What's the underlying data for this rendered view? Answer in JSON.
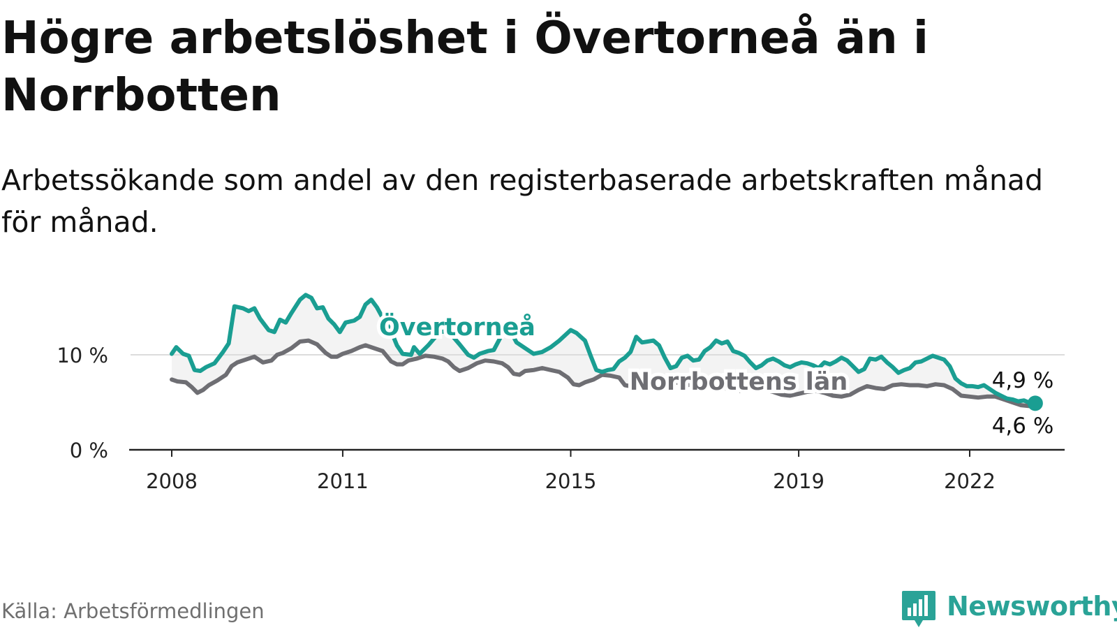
{
  "title": "Högre arbetslöshet i Övertorneå än i Norrbotten",
  "subtitle": "Arbetssökande som andel av den registerbaserade arbetskraften månad för månad.",
  "source": "Källa: Arbetsförmedlingen",
  "brand": {
    "name": "Newsworthy",
    "icon": "newsworthy-bar-chart-icon"
  },
  "colors": {
    "overtornea": "#1a9e92",
    "norrbotten": "#6e6e73",
    "gridline": "#dcdcdc",
    "axis": "#222222",
    "band": "#efefef"
  },
  "chart_data": {
    "type": "line",
    "title": "Högre arbetslöshet i Övertorneå än i Norrbotten",
    "xlabel": "",
    "ylabel": "",
    "xlim": [
      2008,
      2023.25
    ],
    "ylim": [
      0,
      16
    ],
    "yticks": [
      {
        "value": 0,
        "label": "0 %"
      },
      {
        "value": 10,
        "label": "10 %"
      }
    ],
    "xticks": [
      {
        "value": 2008,
        "label": "2008"
      },
      {
        "value": 2011,
        "label": "2011"
      },
      {
        "value": 2015,
        "label": "2015"
      },
      {
        "value": 2019,
        "label": "2019"
      },
      {
        "value": 2022,
        "label": "2022"
      }
    ],
    "series": [
      {
        "name": "Övertorneå",
        "label": "Övertorneå",
        "end_label": "4,9 %",
        "points": [
          [
            2008.0,
            10.1
          ],
          [
            2008.08,
            10.8
          ],
          [
            2008.2,
            10.1
          ],
          [
            2008.3,
            9.9
          ],
          [
            2008.4,
            8.4
          ],
          [
            2008.5,
            8.3
          ],
          [
            2008.6,
            8.7
          ],
          [
            2008.75,
            9.1
          ],
          [
            2008.9,
            10.3
          ],
          [
            2009.0,
            11.2
          ],
          [
            2009.1,
            15.1
          ],
          [
            2009.25,
            14.9
          ],
          [
            2009.35,
            14.6
          ],
          [
            2009.45,
            14.9
          ],
          [
            2009.55,
            13.8
          ],
          [
            2009.7,
            12.6
          ],
          [
            2009.8,
            12.4
          ],
          [
            2009.9,
            13.7
          ],
          [
            2010.0,
            13.4
          ],
          [
            2010.1,
            14.4
          ],
          [
            2010.25,
            15.8
          ],
          [
            2010.35,
            16.3
          ],
          [
            2010.45,
            16.0
          ],
          [
            2010.55,
            14.9
          ],
          [
            2010.65,
            15.0
          ],
          [
            2010.75,
            13.8
          ],
          [
            2010.85,
            13.2
          ],
          [
            2010.95,
            12.4
          ],
          [
            2011.05,
            13.4
          ],
          [
            2011.2,
            13.6
          ],
          [
            2011.3,
            14.0
          ],
          [
            2011.4,
            15.3
          ],
          [
            2011.5,
            15.8
          ],
          [
            2011.6,
            15.0
          ],
          [
            2011.7,
            13.9
          ],
          [
            2011.85,
            12.5
          ],
          [
            2011.95,
            11.0
          ],
          [
            2012.05,
            10.1
          ],
          [
            2012.2,
            10.0
          ],
          [
            2012.25,
            10.8
          ],
          [
            2012.35,
            10.1
          ],
          [
            2012.5,
            11.0
          ],
          [
            2012.7,
            12.4
          ],
          [
            2012.85,
            12.5
          ],
          [
            2013.05,
            11.1
          ],
          [
            2013.2,
            10.0
          ],
          [
            2013.3,
            9.7
          ],
          [
            2013.4,
            10.1
          ],
          [
            2013.55,
            10.4
          ],
          [
            2013.65,
            10.5
          ],
          [
            2013.8,
            12.2
          ],
          [
            2013.95,
            12.4
          ],
          [
            2014.05,
            11.3
          ],
          [
            2014.2,
            10.7
          ],
          [
            2014.35,
            10.1
          ],
          [
            2014.5,
            10.3
          ],
          [
            2014.65,
            10.8
          ],
          [
            2014.8,
            11.5
          ],
          [
            2015.0,
            12.6
          ],
          [
            2015.1,
            12.3
          ],
          [
            2015.25,
            11.5
          ],
          [
            2015.35,
            9.9
          ],
          [
            2015.45,
            8.4
          ],
          [
            2015.55,
            8.2
          ],
          [
            2015.65,
            8.4
          ],
          [
            2015.75,
            8.5
          ],
          [
            2015.85,
            9.3
          ],
          [
            2015.95,
            9.7
          ],
          [
            2016.05,
            10.3
          ],
          [
            2016.15,
            11.9
          ],
          [
            2016.25,
            11.3
          ],
          [
            2016.35,
            11.4
          ],
          [
            2016.45,
            11.5
          ],
          [
            2016.55,
            11.0
          ],
          [
            2016.65,
            9.7
          ],
          [
            2016.75,
            8.6
          ],
          [
            2016.85,
            8.8
          ],
          [
            2016.95,
            9.7
          ],
          [
            2017.05,
            9.9
          ],
          [
            2017.15,
            9.4
          ],
          [
            2017.25,
            9.5
          ],
          [
            2017.35,
            10.4
          ],
          [
            2017.45,
            10.8
          ],
          [
            2017.55,
            11.5
          ],
          [
            2017.65,
            11.2
          ],
          [
            2017.75,
            11.4
          ],
          [
            2017.85,
            10.4
          ],
          [
            2017.95,
            10.2
          ],
          [
            2018.05,
            9.9
          ],
          [
            2018.15,
            9.2
          ],
          [
            2018.25,
            8.6
          ],
          [
            2018.35,
            8.9
          ],
          [
            2018.45,
            9.4
          ],
          [
            2018.55,
            9.6
          ],
          [
            2018.65,
            9.3
          ],
          [
            2018.75,
            8.9
          ],
          [
            2018.85,
            8.7
          ],
          [
            2018.95,
            9.0
          ],
          [
            2019.05,
            9.2
          ],
          [
            2019.15,
            9.1
          ],
          [
            2019.25,
            8.9
          ],
          [
            2019.35,
            8.6
          ],
          [
            2019.45,
            9.2
          ],
          [
            2019.55,
            9.0
          ],
          [
            2019.65,
            9.3
          ],
          [
            2019.75,
            9.7
          ],
          [
            2019.85,
            9.4
          ],
          [
            2019.95,
            8.8
          ],
          [
            2020.05,
            8.2
          ],
          [
            2020.15,
            8.5
          ],
          [
            2020.25,
            9.6
          ],
          [
            2020.35,
            9.5
          ],
          [
            2020.45,
            9.8
          ],
          [
            2020.55,
            9.2
          ],
          [
            2020.65,
            8.7
          ],
          [
            2020.75,
            8.1
          ],
          [
            2020.85,
            8.4
          ],
          [
            2020.95,
            8.6
          ],
          [
            2021.05,
            9.2
          ],
          [
            2021.15,
            9.3
          ],
          [
            2021.25,
            9.6
          ],
          [
            2021.35,
            9.9
          ],
          [
            2021.45,
            9.7
          ],
          [
            2021.55,
            9.5
          ],
          [
            2021.65,
            8.8
          ],
          [
            2021.75,
            7.5
          ],
          [
            2021.85,
            7.0
          ],
          [
            2021.95,
            6.7
          ],
          [
            2022.05,
            6.7
          ],
          [
            2022.15,
            6.6
          ],
          [
            2022.25,
            6.8
          ],
          [
            2022.35,
            6.4
          ],
          [
            2022.45,
            6.0
          ],
          [
            2022.55,
            5.7
          ],
          [
            2022.65,
            5.4
          ],
          [
            2022.75,
            5.3
          ],
          [
            2022.85,
            5.1
          ],
          [
            2022.95,
            5.2
          ],
          [
            2023.05,
            4.95
          ],
          [
            2023.15,
            4.9
          ]
        ]
      },
      {
        "name": "Norrbottens län",
        "label": "Norrbottens län",
        "end_label": "4,6 %",
        "points": [
          [
            2008.0,
            7.4
          ],
          [
            2008.1,
            7.2
          ],
          [
            2008.25,
            7.1
          ],
          [
            2008.35,
            6.6
          ],
          [
            2008.45,
            6.0
          ],
          [
            2008.55,
            6.3
          ],
          [
            2008.65,
            6.8
          ],
          [
            2008.8,
            7.3
          ],
          [
            2008.95,
            7.9
          ],
          [
            2009.05,
            8.8
          ],
          [
            2009.15,
            9.2
          ],
          [
            2009.3,
            9.5
          ],
          [
            2009.45,
            9.8
          ],
          [
            2009.6,
            9.2
          ],
          [
            2009.75,
            9.4
          ],
          [
            2009.85,
            10.0
          ],
          [
            2009.95,
            10.2
          ],
          [
            2010.1,
            10.7
          ],
          [
            2010.25,
            11.4
          ],
          [
            2010.4,
            11.5
          ],
          [
            2010.55,
            11.1
          ],
          [
            2010.7,
            10.2
          ],
          [
            2010.8,
            9.8
          ],
          [
            2010.9,
            9.8
          ],
          [
            2011.0,
            10.1
          ],
          [
            2011.15,
            10.4
          ],
          [
            2011.3,
            10.8
          ],
          [
            2011.4,
            11.0
          ],
          [
            2011.55,
            10.7
          ],
          [
            2011.7,
            10.4
          ],
          [
            2011.85,
            9.3
          ],
          [
            2011.95,
            9.0
          ],
          [
            2012.05,
            9.0
          ],
          [
            2012.15,
            9.4
          ],
          [
            2012.3,
            9.6
          ],
          [
            2012.45,
            9.9
          ],
          [
            2012.6,
            9.8
          ],
          [
            2012.75,
            9.6
          ],
          [
            2012.85,
            9.3
          ],
          [
            2012.95,
            8.7
          ],
          [
            2013.05,
            8.3
          ],
          [
            2013.2,
            8.6
          ],
          [
            2013.35,
            9.1
          ],
          [
            2013.5,
            9.4
          ],
          [
            2013.65,
            9.3
          ],
          [
            2013.8,
            9.1
          ],
          [
            2013.9,
            8.7
          ],
          [
            2014.0,
            8.0
          ],
          [
            2014.1,
            7.9
          ],
          [
            2014.2,
            8.3
          ],
          [
            2014.35,
            8.4
          ],
          [
            2014.5,
            8.6
          ],
          [
            2014.65,
            8.4
          ],
          [
            2014.8,
            8.2
          ],
          [
            2014.95,
            7.6
          ],
          [
            2015.05,
            6.9
          ],
          [
            2015.15,
            6.8
          ],
          [
            2015.25,
            7.1
          ],
          [
            2015.4,
            7.4
          ],
          [
            2015.55,
            7.9
          ],
          [
            2015.7,
            7.8
          ],
          [
            2015.85,
            7.6
          ],
          [
            2015.95,
            6.8
          ],
          [
            2016.05,
            6.7
          ],
          [
            2016.15,
            7.1
          ],
          [
            2016.3,
            7.3
          ],
          [
            2016.45,
            7.6
          ],
          [
            2016.6,
            7.6
          ],
          [
            2016.75,
            7.3
          ],
          [
            2016.9,
            7.0
          ],
          [
            2017.05,
            6.8
          ],
          [
            2017.2,
            7.0
          ],
          [
            2017.35,
            7.1
          ],
          [
            2017.5,
            6.9
          ],
          [
            2017.65,
            6.6
          ],
          [
            2017.8,
            6.3
          ],
          [
            2017.95,
            6.2
          ],
          [
            2018.1,
            6.4
          ],
          [
            2018.25,
            6.5
          ],
          [
            2018.4,
            6.3
          ],
          [
            2018.55,
            6.1
          ],
          [
            2018.7,
            5.8
          ],
          [
            2018.85,
            5.7
          ],
          [
            2019.0,
            5.9
          ],
          [
            2019.15,
            6.1
          ],
          [
            2019.3,
            6.2
          ],
          [
            2019.45,
            6.0
          ],
          [
            2019.6,
            5.7
          ],
          [
            2019.75,
            5.6
          ],
          [
            2019.9,
            5.8
          ],
          [
            2020.05,
            6.3
          ],
          [
            2020.2,
            6.7
          ],
          [
            2020.35,
            6.5
          ],
          [
            2020.5,
            6.4
          ],
          [
            2020.65,
            6.8
          ],
          [
            2020.8,
            6.9
          ],
          [
            2020.95,
            6.8
          ],
          [
            2021.1,
            6.8
          ],
          [
            2021.25,
            6.7
          ],
          [
            2021.4,
            6.9
          ],
          [
            2021.55,
            6.8
          ],
          [
            2021.7,
            6.4
          ],
          [
            2021.85,
            5.7
          ],
          [
            2022.0,
            5.6
          ],
          [
            2022.15,
            5.5
          ],
          [
            2022.3,
            5.6
          ],
          [
            2022.45,
            5.6
          ],
          [
            2022.6,
            5.3
          ],
          [
            2022.75,
            5.0
          ],
          [
            2022.9,
            4.7
          ],
          [
            2023.05,
            4.6
          ],
          [
            2023.15,
            4.6
          ]
        ]
      }
    ]
  }
}
